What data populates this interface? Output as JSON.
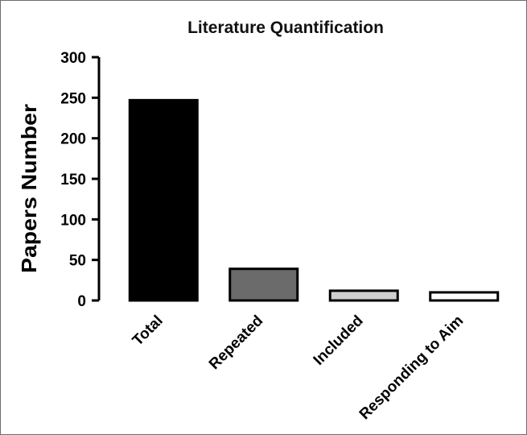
{
  "chart_data": {
    "type": "bar",
    "title": "Literature Quantification",
    "xlabel": "",
    "ylabel": "Papers Number",
    "ylim": [
      0,
      300
    ],
    "yticks": [
      "0",
      "50",
      "100",
      "150",
      "200",
      "250",
      "300"
    ],
    "categories": [
      "Total",
      "Repeated",
      "Included",
      "Responding to Aim"
    ],
    "values": [
      247,
      39,
      12,
      10
    ],
    "bar_colors": [
      "#000000",
      "#6b6b6b",
      "#cfcfcf",
      "#ffffff"
    ],
    "grid": false,
    "legend": "none"
  }
}
